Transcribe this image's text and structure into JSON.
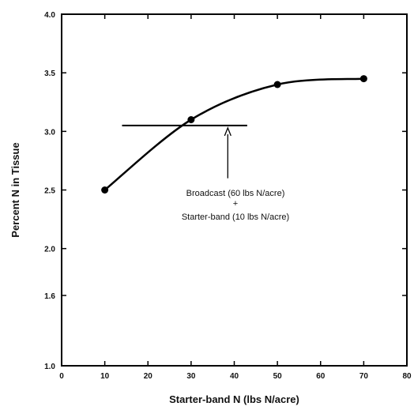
{
  "chart_data": {
    "type": "line",
    "title": "",
    "xlabel": "Starter-band N (lbs N/acre)",
    "ylabel": "Percent N in Tissue",
    "xlim": [
      0,
      80
    ],
    "ylim": [
      1.0,
      4.0
    ],
    "x_ticks": [
      "0",
      "10",
      "20",
      "30",
      "40",
      "50",
      "60",
      "70",
      "80"
    ],
    "y_ticks": [
      "1.0",
      "1.6",
      "2.0",
      "2.5",
      "3.0",
      "3.5",
      "4.0"
    ],
    "grid": false,
    "series": [
      {
        "points": [
          [
            10,
            2.5
          ],
          [
            30,
            3.1
          ],
          [
            50,
            3.4
          ],
          [
            70,
            3.45
          ]
        ]
      }
    ],
    "reference_line": {
      "x_start": 14,
      "x_end": 43,
      "y": 3.05
    },
    "annotation": {
      "lines": [
        "Broadcast (60 lbs N/acre)",
        "+",
        "Starter-band (10 lbs N/acre)"
      ],
      "arrow_x": 38.5,
      "arrow_y_from": 2.6,
      "arrow_y_to": 3.05
    }
  }
}
